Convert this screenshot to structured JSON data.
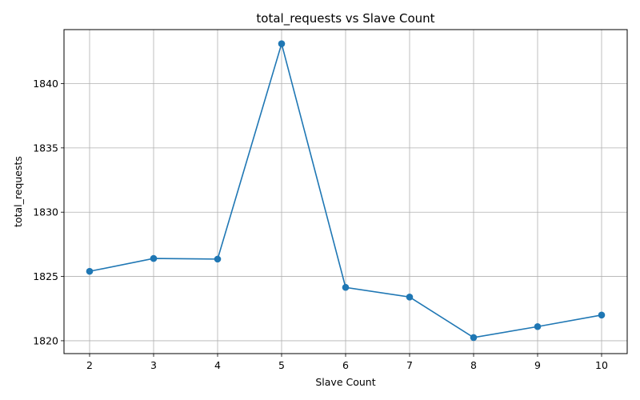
{
  "chart_data": {
    "type": "line",
    "title": "total_requests vs Slave Count",
    "xlabel": "Slave Count",
    "ylabel": "total_requests",
    "x": [
      2,
      3,
      4,
      5,
      6,
      7,
      8,
      9,
      10
    ],
    "series": [
      {
        "values": [
          1825.4,
          1826.4,
          1826.35,
          1843.1,
          1824.15,
          1823.4,
          1820.25,
          1821.1,
          1822.0
        ],
        "color": "#1f77b4",
        "marker": "circle"
      }
    ],
    "xlim": [
      1.6,
      10.4
    ],
    "ylim": [
      1819.0,
      1844.2
    ],
    "xticks": [
      2,
      3,
      4,
      5,
      6,
      7,
      8,
      9,
      10
    ],
    "yticks": [
      1820,
      1825,
      1830,
      1835,
      1840
    ],
    "grid": true,
    "grid_color": "#b0b0b0"
  }
}
